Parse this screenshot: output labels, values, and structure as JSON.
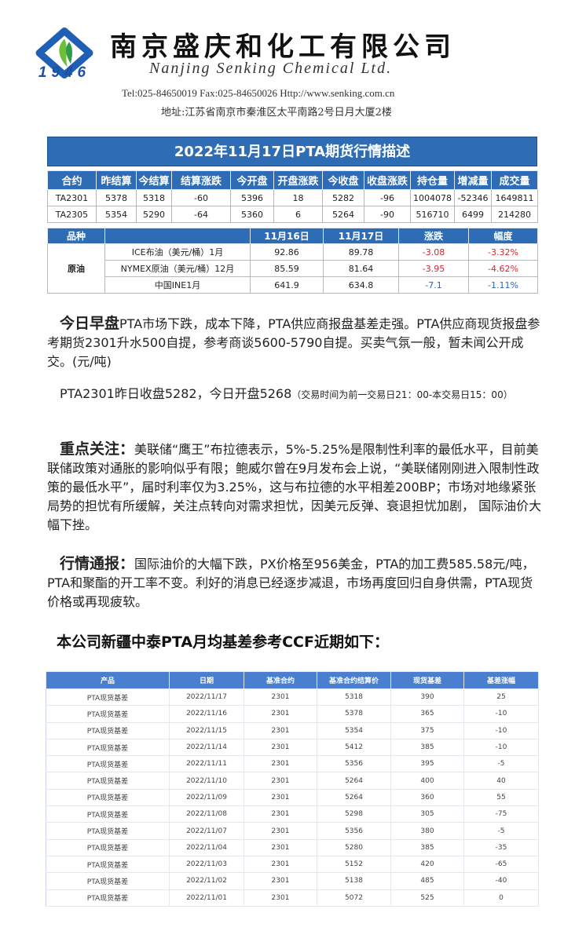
{
  "header": {
    "company_cn": "南京盛庆和化工有限公司",
    "company_en": "Nanjing Senking Chemical Ltd.",
    "logo_year": "1946",
    "contact": "Tel:025-84650019  Fax:025-84650026 Http://www.senking.com.cn",
    "address": "地址:江苏省南京市秦淮区太平南路2号日月大厦2楼"
  },
  "futures": {
    "title": "2022年11月17日PTA期货行情描述",
    "columns": [
      "合约",
      "昨结算",
      "今结算",
      "结算涨跌",
      "今开盘",
      "开盘涨跌",
      "今收盘",
      "收盘涨跌",
      "持仓量",
      "增减量",
      "成交量"
    ],
    "rows": [
      [
        "TA2301",
        "5378",
        "5318",
        "-60",
        "5396",
        "18",
        "5282",
        "-96",
        "1004078",
        "-52346",
        "1649811"
      ],
      [
        "TA2305",
        "5354",
        "5290",
        "-64",
        "5360",
        "6",
        "5264",
        "-90",
        "516710",
        "6499",
        "214280"
      ]
    ]
  },
  "crude": {
    "columns": [
      "品种",
      "",
      "11月16日",
      "11月17日",
      "涨跌",
      "幅度"
    ],
    "category": "原油",
    "rows": [
      [
        "ICE布油（美元/桶）1月",
        "92.86",
        "89.78",
        "-3.08",
        "-3.32%"
      ],
      [
        "NYMEX原油（美元/桶）12月",
        "85.59",
        "81.64",
        "-3.95",
        "-4.62%"
      ],
      [
        "中国INE1月",
        "641.9",
        "634.8",
        "-7.1",
        "-1.11%"
      ]
    ],
    "row_colors": [
      "#d6262c",
      "#d6262c",
      "#2d62b8"
    ]
  },
  "paragraphs": {
    "p1_lead": "今日早盘",
    "p1_text": "PTA市场下跌，成本下降，PTA供应商报盘基差走强。PTA供应商现货报盘参考期货2301升水500自提，参考商谈5600-5790自提。买卖气氛一般，暂未闻公开成交。(元/吨)",
    "p2_text": "PTA2301昨日收盘5282，今日开盘5268",
    "p2_note": "（交易时间为前一交易日21：00-本交易日15：00）",
    "p3_lead": "重点关注：",
    "p3_text": "美联储“鹰王”布拉德表示，5%-5.25%是限制性利率的最低水平，目前美联储政策对通胀的影响似乎有限；鲍威尔曾在9月发布会上说，“美联储刚刚进入限制性政策的最低水平”，届时利率仅为3.25%，这与布拉德的水平相差200BP；市场对地缘紧张局势的担忧有所缓解，关注点转向对需求担忧，因美元反弹、衰退担忧加剧， 国际油价大幅下挫。",
    "p4_lead": "行情通报：",
    "p4_text": "国际油价的大幅下跌，PX价格至956美金，PTA的加工费585.58元/吨，PTA和聚酯的开工率不变。利好的消息已经逐步减退，市场再度回归自身供需，PTA现货价格或再现疲软。",
    "heading": "本公司新疆中泰PTA月均基差参考CCF近期如下："
  },
  "basis": {
    "columns": [
      "产品",
      "日期",
      "基准合约",
      "基准合约结算价",
      "现货基差",
      "基差涨幅"
    ],
    "rows": [
      [
        "PTA现货基差",
        "2022/11/17",
        "2301",
        "5318",
        "390",
        "25"
      ],
      [
        "PTA现货基差",
        "2022/11/16",
        "2301",
        "5378",
        "365",
        "-10"
      ],
      [
        "PTA现货基差",
        "2022/11/15",
        "2301",
        "5354",
        "375",
        "-10"
      ],
      [
        "PTA现货基差",
        "2022/11/14",
        "2301",
        "5412",
        "385",
        "-10"
      ],
      [
        "PTA现货基差",
        "2022/11/11",
        "2301",
        "5356",
        "395",
        "-5"
      ],
      [
        "PTA现货基差",
        "2022/11/10",
        "2301",
        "5264",
        "400",
        "40"
      ],
      [
        "PTA现货基差",
        "2022/11/09",
        "2301",
        "5264",
        "360",
        "55"
      ],
      [
        "PTA现货基差",
        "2022/11/08",
        "2301",
        "5298",
        "305",
        "-75"
      ],
      [
        "PTA现货基差",
        "2022/11/07",
        "2301",
        "5356",
        "380",
        "-5"
      ],
      [
        "PTA现货基差",
        "2022/11/04",
        "2301",
        "5280",
        "385",
        "-35"
      ],
      [
        "PTA现货基差",
        "2022/11/03",
        "2301",
        "5152",
        "420",
        "-65"
      ],
      [
        "PTA现货基差",
        "2022/11/02",
        "2301",
        "5138",
        "485",
        "-40"
      ],
      [
        "PTA现货基差",
        "2022/11/01",
        "2301",
        "5072",
        "525",
        "0"
      ]
    ]
  }
}
